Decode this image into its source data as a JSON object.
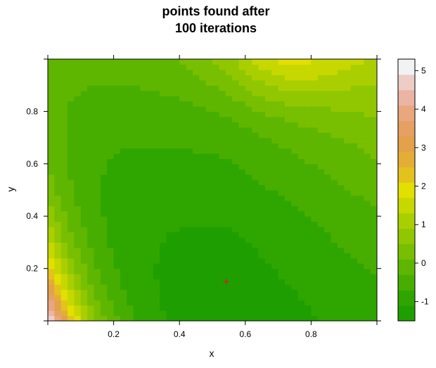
{
  "chart_data": {
    "type": "heatmap",
    "title_lines": [
      "points found after",
      "100 iterations"
    ],
    "xlabel": "x",
    "ylabel": "y",
    "xlim": [
      0,
      1
    ],
    "ylim": [
      0,
      1
    ],
    "x_ticks": [
      0.2,
      0.4,
      0.6,
      0.8
    ],
    "y_ticks": [
      0.2,
      0.4,
      0.6,
      0.8
    ],
    "x_tick_labels": [
      "0.2",
      "0.4",
      "0.6",
      "0.8"
    ],
    "y_tick_labels": [
      "0.2",
      "0.4",
      "0.6",
      "0.8"
    ],
    "colorbar": {
      "min": -1.5,
      "max": 5.3,
      "ticks": [
        -1,
        0,
        1,
        2,
        3,
        4,
        5
      ],
      "tick_labels": [
        "-1",
        "0",
        "1",
        "2",
        "3",
        "4",
        "5"
      ],
      "colors": [
        "#1f9e00",
        "#2fa600",
        "#47ae00",
        "#5eb600",
        "#77bf00",
        "#90c700",
        "#aacf00",
        "#c6d800",
        "#e2e000",
        "#e3c21e",
        "#e4ad36",
        "#e4a14c",
        "#e6a064",
        "#e8a77d",
        "#ebb4a3",
        "#eecdc7",
        "#f2f2f2"
      ]
    },
    "points_found": [
      {
        "x": 0.542,
        "y": 0.15,
        "marker": "+",
        "color": "#cc2222"
      }
    ]
  }
}
